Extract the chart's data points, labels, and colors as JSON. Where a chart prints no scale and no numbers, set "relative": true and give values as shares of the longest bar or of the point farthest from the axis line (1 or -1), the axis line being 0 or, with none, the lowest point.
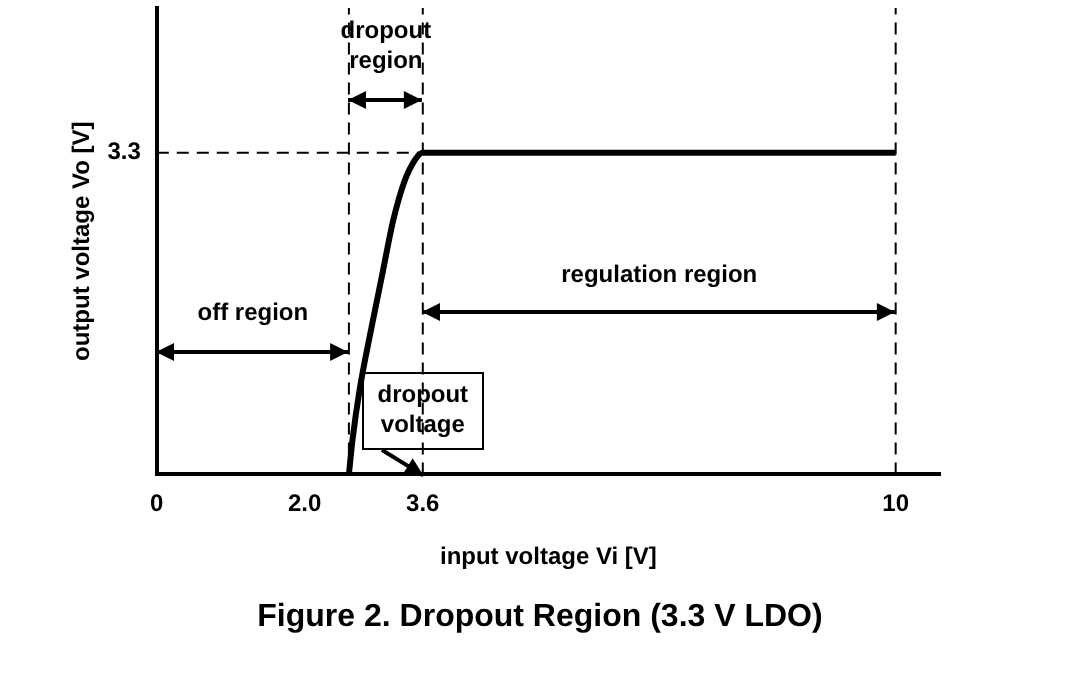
{
  "chart_data": {
    "type": "line",
    "title": "Figure 2.  Dropout Region (3.3 V LDO)",
    "xlabel": "input voltage Vi [V]",
    "ylabel": "output voltage Vo [V]",
    "x": [
      2.6,
      2.65,
      2.75,
      2.9,
      3.05,
      3.2,
      3.35,
      3.5,
      3.6,
      10
    ],
    "series": [
      {
        "color": "#000000",
        "values": [
          0,
          0.11,
          0.27,
          0.45,
          0.62,
          0.79,
          0.91,
          0.98,
          1,
          1
        ]
      }
    ],
    "relative": true,
    "xlim": [
      0,
      10.6
    ],
    "xticks": [
      0,
      {
        "value": 2,
        "label": "2.0"
      },
      3.6,
      10
    ],
    "ref_lines": [
      {
        "axis": "x",
        "value": 2.6,
        "line_style": "dashed",
        "color": "#000000"
      },
      {
        "axis": "x",
        "value": 3.6,
        "line_style": "dashed",
        "color": "#000000"
      },
      {
        "axis": "x",
        "value": 10,
        "line_style": "dashed",
        "color": "#000000"
      },
      {
        "axis": "y",
        "value": 1,
        "line_style": "dashed",
        "color": "#000000"
      }
    ],
    "annotations": [
      "dropout region",
      "off region",
      "regulation region",
      "dropout voltage",
      "3.3"
    ],
    "grid": false,
    "legend": false,
    "marker": "none",
    "line_style": "solid"
  }
}
